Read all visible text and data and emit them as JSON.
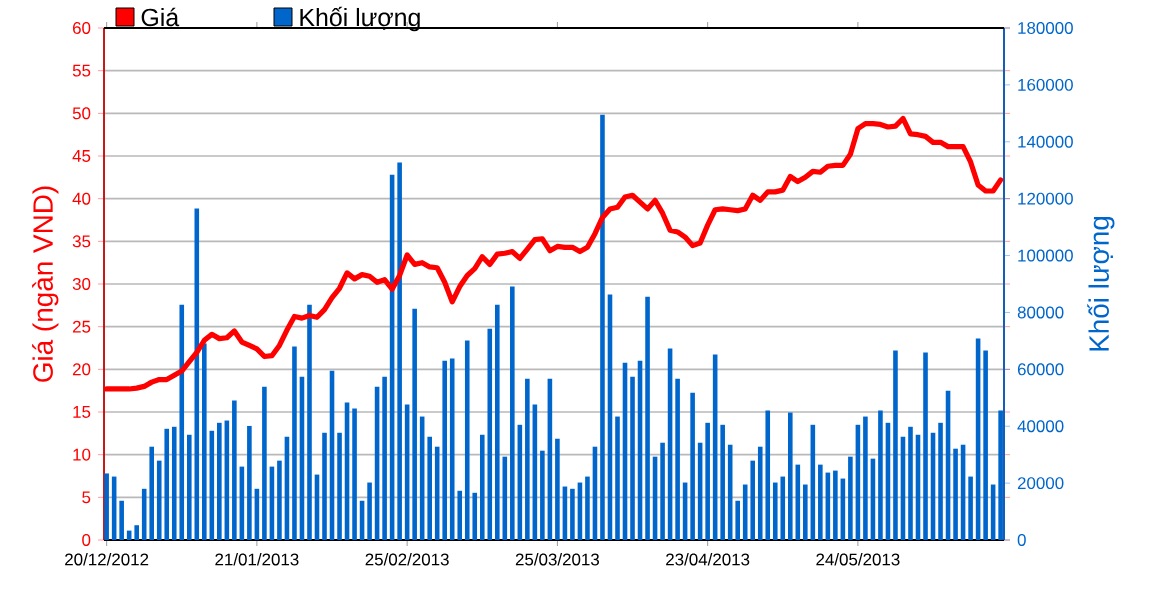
{
  "chart_data": {
    "type": "bar",
    "categories": [
      "20/12/2012",
      null,
      null,
      null,
      null,
      null,
      null,
      null,
      null,
      null,
      null,
      null,
      null,
      null,
      null,
      null,
      null,
      null,
      null,
      null,
      "21/01/2013",
      null,
      null,
      null,
      null,
      null,
      null,
      null,
      null,
      null,
      null,
      null,
      null,
      null,
      null,
      null,
      null,
      null,
      null,
      null,
      "25/02/2013",
      null,
      null,
      null,
      null,
      null,
      null,
      null,
      null,
      null,
      null,
      null,
      null,
      null,
      null,
      null,
      null,
      null,
      null,
      null,
      "25/03/2013",
      null,
      null,
      null,
      null,
      null,
      null,
      null,
      null,
      null,
      null,
      null,
      null,
      null,
      null,
      null,
      null,
      null,
      null,
      null,
      "23/04/2013",
      null,
      null,
      null,
      null,
      null,
      null,
      null,
      null,
      null,
      null,
      null,
      null,
      null,
      null,
      null,
      null,
      null,
      null,
      null,
      "24/05/2013",
      null,
      null,
      null,
      null,
      null,
      null,
      null,
      null,
      null,
      null,
      null,
      null,
      null,
      null,
      null,
      null,
      null,
      null,
      null
    ],
    "series": [
      {
        "name": "Giá",
        "type": "line",
        "color": "#ff0000",
        "values": [
          17.7,
          17.7,
          17.7,
          17.7,
          17.8,
          18.0,
          18.5,
          18.8,
          18.8,
          19.3,
          19.8,
          20.9,
          22.0,
          23.4,
          24.1,
          23.6,
          23.7,
          24.5,
          23.2,
          22.8,
          22.4,
          21.5,
          21.6,
          22.8,
          24.6,
          26.2,
          26.0,
          26.3,
          26.1,
          27.0,
          28.4,
          29.5,
          31.3,
          30.6,
          31.1,
          30.9,
          30.2,
          30.5,
          29.4,
          31.0,
          33.4,
          32.3,
          32.5,
          32.0,
          31.9,
          30.2,
          27.9,
          29.7,
          31.0,
          31.8,
          33.2,
          32.3,
          33.5,
          33.6,
          33.8,
          33.0,
          34.1,
          35.2,
          35.3,
          33.9,
          34.4,
          34.3,
          34.3,
          33.8,
          34.3,
          35.9,
          37.8,
          38.8,
          39.0,
          40.2,
          40.4,
          39.6,
          38.8,
          39.8,
          38.3,
          36.3,
          36.1,
          35.5,
          34.5,
          34.8,
          36.9,
          38.7,
          38.8,
          38.7,
          38.6,
          38.8,
          40.4,
          39.8,
          40.8,
          40.8,
          41.0,
          42.6,
          42.0,
          42.5,
          43.2,
          43.1,
          43.8,
          43.9,
          43.9,
          45.2,
          48.2,
          48.8,
          48.8,
          48.7,
          48.4,
          48.5,
          49.4,
          47.6,
          47.5,
          47.3,
          46.6,
          46.6,
          46.1,
          46.1,
          46.1,
          44.3,
          41.6,
          40.9,
          40.9,
          42.2
        ]
      },
      {
        "name": "Khối lượng",
        "axis": "y2",
        "color": "#0066cc",
        "values": [
          23400,
          22300,
          13800,
          3300,
          5200,
          18000,
          32800,
          27900,
          39100,
          39800,
          82700,
          37000,
          116500,
          69100,
          38400,
          41200,
          42000,
          49000,
          25800,
          40100,
          18000,
          53900,
          25800,
          27900,
          36300,
          68000,
          57400,
          82700,
          23000,
          37700,
          59500,
          37700,
          48300,
          46200,
          13800,
          20200,
          53900,
          57400,
          128400,
          132700,
          47600,
          81300,
          43400,
          36300,
          32800,
          63000,
          63800,
          17300,
          70100,
          16600,
          37000,
          74300,
          82700,
          29300,
          89100,
          40500,
          56700,
          47600,
          31400,
          56700,
          35600,
          18800,
          18000,
          20200,
          22300,
          32800,
          149500,
          86300,
          43400,
          62300,
          57400,
          63000,
          85500,
          29300,
          34200,
          67300,
          56700,
          20200,
          51800,
          34200,
          41200,
          65200,
          40500,
          33500,
          13800,
          19500,
          27900,
          32800,
          45500,
          20200,
          22300,
          44800,
          26500,
          19500,
          40500,
          26500,
          23700,
          24400,
          21600,
          29300,
          40500,
          43400,
          28600,
          45500,
          41200,
          66600,
          36300,
          39800,
          37000,
          65900,
          37700,
          41200,
          52500,
          32100,
          33500,
          22300,
          70800,
          66600,
          19500,
          45500
        ]
      }
    ],
    "ylabel": "Giá (ngàn VND)",
    "y2label": "Khối lượng",
    "ylim": [
      0,
      60
    ],
    "yticks": [
      0,
      5,
      10,
      15,
      20,
      25,
      30,
      35,
      40,
      45,
      50,
      55,
      60
    ],
    "y2lim": [
      0,
      180000
    ],
    "y2ticks": [
      0,
      20000,
      40000,
      60000,
      80000,
      100000,
      120000,
      140000,
      160000,
      180000
    ],
    "grid": "y",
    "legend": "top left"
  }
}
